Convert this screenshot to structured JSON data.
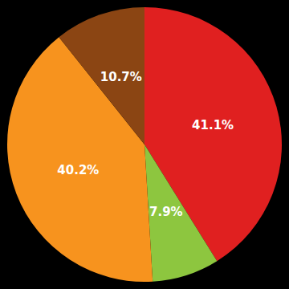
{
  "chart_data": {
    "type": "pie",
    "values": [
      41.1,
      7.9,
      40.2,
      10.7
    ],
    "value_labels": [
      "41.1%",
      "7.9%",
      "40.2%",
      "10.7%"
    ],
    "colors": [
      "#e02020",
      "#8dc63f",
      "#f7931e",
      "#8b4513"
    ],
    "data_labels": true
  }
}
